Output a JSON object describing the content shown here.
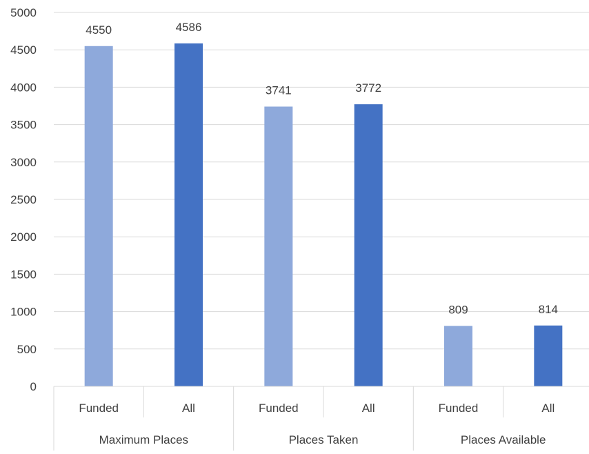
{
  "chart_data": {
    "type": "bar",
    "title": "",
    "xlabel": "",
    "ylabel": "",
    "ylim": [
      0,
      5000
    ],
    "yticks": [
      0,
      500,
      1000,
      1500,
      2000,
      2500,
      3000,
      3500,
      4000,
      4500,
      5000
    ],
    "grid": true,
    "legend": "none",
    "groups": [
      {
        "label": "Maximum Places",
        "bars": [
          {
            "label": "Funded",
            "value": 4550,
            "color": "#8EA9DB"
          },
          {
            "label": "All",
            "value": 4586,
            "color": "#4472C4"
          }
        ]
      },
      {
        "label": "Places Taken",
        "bars": [
          {
            "label": "Funded",
            "value": 3741,
            "color": "#8EA9DB"
          },
          {
            "label": "All",
            "value": 3772,
            "color": "#4472C4"
          }
        ]
      },
      {
        "label": "Places Available",
        "bars": [
          {
            "label": "Funded",
            "value": 809,
            "color": "#8EA9DB"
          },
          {
            "label": "All",
            "value": 814,
            "color": "#4472C4"
          }
        ]
      }
    ]
  }
}
